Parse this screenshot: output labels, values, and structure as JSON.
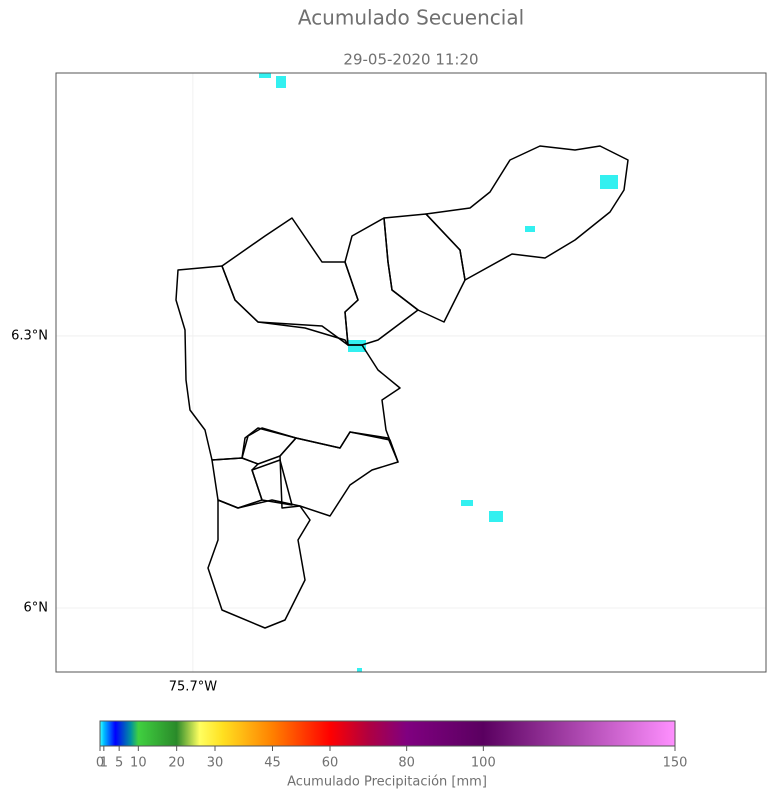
{
  "chart_data": {
    "type": "map",
    "title": "Acumulado Secuencial",
    "subtitle": "29-05-2020 11:20",
    "xlim": [
      -75.851,
      -75.068
    ],
    "ylim": [
      5.9294,
      6.59
    ],
    "xticks": [
      {
        "value": -75.7,
        "label": "75.7°W"
      }
    ],
    "yticks": [
      {
        "value": 6.0,
        "label": "6°N"
      },
      {
        "value": 6.3,
        "label": "6.3°N"
      }
    ],
    "grid": true,
    "colorbar": {
      "label": "Acumulado Precipitación [mm]",
      "lim": [
        0,
        150
      ],
      "ticks": [
        0,
        1,
        5,
        10,
        20,
        30,
        45,
        60,
        80,
        100,
        150
      ],
      "colors": [
        {
          "value": 0,
          "color": "#40ffff"
        },
        {
          "value": 1,
          "color": "#00c0ff"
        },
        {
          "value": 4,
          "color": "#0000ff"
        },
        {
          "value": 8,
          "color": "#0090a0"
        },
        {
          "value": 10,
          "color": "#40d040"
        },
        {
          "value": 20,
          "color": "#2a8a2a"
        },
        {
          "value": 26,
          "color": "#ffff60"
        },
        {
          "value": 32,
          "color": "#ffe020"
        },
        {
          "value": 45,
          "color": "#ff8000"
        },
        {
          "value": 60,
          "color": "#ff0000"
        },
        {
          "value": 70,
          "color": "#b00040"
        },
        {
          "value": 80,
          "color": "#800080"
        },
        {
          "value": 100,
          "color": "#5a0060"
        },
        {
          "value": 150,
          "color": "#ff90ff"
        }
      ]
    }
  }
}
